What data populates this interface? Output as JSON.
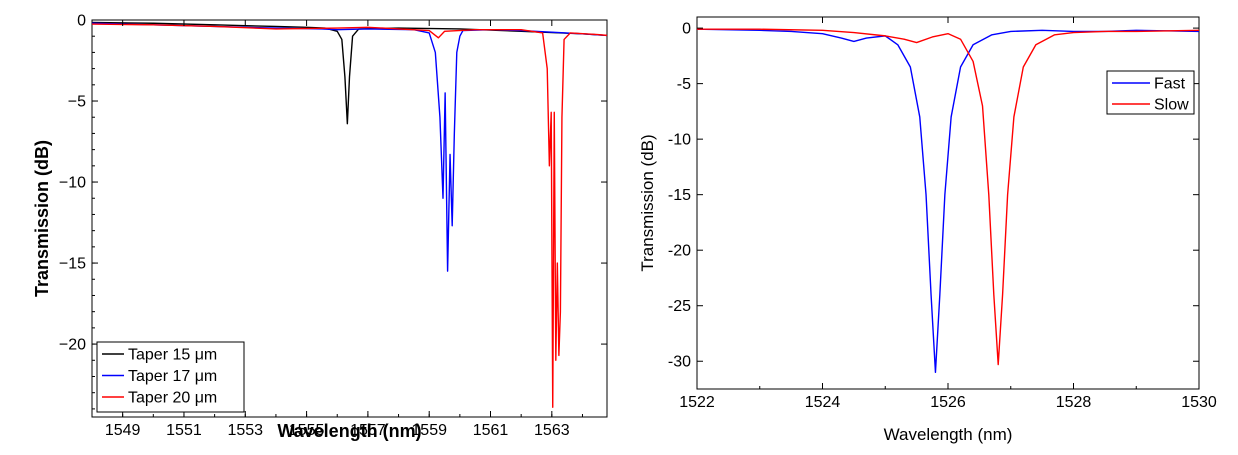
{
  "chart_data": [
    {
      "type": "line",
      "title": "",
      "xlabel": "Wavelength (nm)",
      "ylabel": "Transmission (dB)",
      "xlim": [
        1548,
        1564.8
      ],
      "ylim": [
        -24.5,
        0
      ],
      "x_ticks": [
        "1549",
        "1551",
        "1553",
        "1555",
        "1557",
        "1559",
        "1561",
        "1563"
      ],
      "y_ticks": [
        "0",
        "−5",
        "−10",
        "−15",
        "−20"
      ],
      "grid": false,
      "legend": "bottom-left",
      "series": [
        {
          "name": "Taper 15 μm",
          "color": "#000000",
          "points": [
            [
              1548,
              -0.15
            ],
            [
              1550,
              -0.2
            ],
            [
              1552,
              -0.3
            ],
            [
              1554,
              -0.4
            ],
            [
              1555,
              -0.45
            ],
            [
              1555.6,
              -0.5
            ],
            [
              1556,
              -0.7
            ],
            [
              1556.15,
              -1.2
            ],
            [
              1556.25,
              -3.5
            ],
            [
              1556.33,
              -6.4
            ],
            [
              1556.4,
              -3.5
            ],
            [
              1556.5,
              -1.0
            ],
            [
              1556.7,
              -0.55
            ],
            [
              1558,
              -0.5
            ],
            [
              1560,
              -0.55
            ],
            [
              1562,
              -0.7
            ],
            [
              1564,
              -0.85
            ],
            [
              1564.8,
              -0.95
            ]
          ]
        },
        {
          "name": "Taper 17 μm",
          "color": "#0000ff",
          "points": [
            [
              1548,
              -0.2
            ],
            [
              1550,
              -0.3
            ],
            [
              1552,
              -0.4
            ],
            [
              1554,
              -0.5
            ],
            [
              1555.5,
              -0.55
            ],
            [
              1556,
              -0.6
            ],
            [
              1557,
              -0.55
            ],
            [
              1558.5,
              -0.6
            ],
            [
              1559,
              -0.8
            ],
            [
              1559.2,
              -2.0
            ],
            [
              1559.35,
              -6.0
            ],
            [
              1559.45,
              -11.0
            ],
            [
              1559.52,
              -4.5
            ],
            [
              1559.6,
              -15.5
            ],
            [
              1559.68,
              -8.3
            ],
            [
              1559.75,
              -12.7
            ],
            [
              1559.82,
              -7.0
            ],
            [
              1559.9,
              -2.0
            ],
            [
              1560,
              -1.0
            ],
            [
              1560.1,
              -0.65
            ],
            [
              1561,
              -0.6
            ],
            [
              1562,
              -0.65
            ],
            [
              1563,
              -0.75
            ],
            [
              1564,
              -0.85
            ],
            [
              1564.8,
              -0.95
            ]
          ]
        },
        {
          "name": "Taper 20 μm",
          "color": "#ff0000",
          "points": [
            [
              1548,
              -0.25
            ],
            [
              1550,
              -0.3
            ],
            [
              1552,
              -0.4
            ],
            [
              1554,
              -0.55
            ],
            [
              1556,
              -0.5
            ],
            [
              1557,
              -0.45
            ],
            [
              1558,
              -0.55
            ],
            [
              1559,
              -0.65
            ],
            [
              1559.3,
              -1.1
            ],
            [
              1559.5,
              -0.7
            ],
            [
              1560.5,
              -0.6
            ],
            [
              1562,
              -0.6
            ],
            [
              1562.7,
              -0.8
            ],
            [
              1562.85,
              -3.0
            ],
            [
              1562.92,
              -9.0
            ],
            [
              1562.98,
              -5.7
            ],
            [
              1563.03,
              -23.9
            ],
            [
              1563.08,
              -5.7
            ],
            [
              1563.13,
              -21.0
            ],
            [
              1563.18,
              -15.0
            ],
            [
              1563.23,
              -20.7
            ],
            [
              1563.28,
              -18.0
            ],
            [
              1563.33,
              -6.0
            ],
            [
              1563.4,
              -1.2
            ],
            [
              1563.6,
              -0.8
            ],
            [
              1564.5,
              -0.9
            ],
            [
              1564.8,
              -0.95
            ]
          ]
        }
      ]
    },
    {
      "type": "line",
      "title": "",
      "xlabel": "Wavelength (nm)",
      "ylabel": "Transmission (dB)",
      "xlim": [
        1522,
        1530
      ],
      "ylim": [
        -32.5,
        1
      ],
      "x_ticks": [
        "1522",
        "1524",
        "1526",
        "1528",
        "1530"
      ],
      "y_ticks": [
        "0",
        "-5",
        "-10",
        "-15",
        "-20",
        "-25",
        "-30"
      ],
      "grid": false,
      "legend": "top-right",
      "series": [
        {
          "name": "Fast",
          "color": "#0000ff",
          "points": [
            [
              1522,
              -0.1
            ],
            [
              1523,
              -0.2
            ],
            [
              1523.5,
              -0.3
            ],
            [
              1524,
              -0.5
            ],
            [
              1524.3,
              -0.9
            ],
            [
              1524.5,
              -1.2
            ],
            [
              1524.7,
              -0.9
            ],
            [
              1525,
              -0.7
            ],
            [
              1525.2,
              -1.5
            ],
            [
              1525.4,
              -3.5
            ],
            [
              1525.55,
              -8.0
            ],
            [
              1525.65,
              -15.0
            ],
            [
              1525.73,
              -24.0
            ],
            [
              1525.8,
              -31.0
            ],
            [
              1525.87,
              -24.0
            ],
            [
              1525.95,
              -15.0
            ],
            [
              1526.05,
              -8.0
            ],
            [
              1526.2,
              -3.5
            ],
            [
              1526.4,
              -1.5
            ],
            [
              1526.7,
              -0.6
            ],
            [
              1527,
              -0.3
            ],
            [
              1527.5,
              -0.2
            ],
            [
              1528,
              -0.3
            ],
            [
              1528.5,
              -0.3
            ],
            [
              1529,
              -0.2
            ],
            [
              1530,
              -0.3
            ]
          ]
        },
        {
          "name": "Slow",
          "color": "#ff0000",
          "points": [
            [
              1522,
              -0.1
            ],
            [
              1523,
              -0.1
            ],
            [
              1524,
              -0.2
            ],
            [
              1524.5,
              -0.4
            ],
            [
              1525,
              -0.7
            ],
            [
              1525.3,
              -1.0
            ],
            [
              1525.5,
              -1.3
            ],
            [
              1525.75,
              -0.8
            ],
            [
              1526,
              -0.5
            ],
            [
              1526.2,
              -1.0
            ],
            [
              1526.4,
              -3.0
            ],
            [
              1526.55,
              -7.0
            ],
            [
              1526.65,
              -15.0
            ],
            [
              1526.73,
              -24.0
            ],
            [
              1526.8,
              -30.3
            ],
            [
              1526.87,
              -24.0
            ],
            [
              1526.95,
              -15.0
            ],
            [
              1527.05,
              -8.0
            ],
            [
              1527.2,
              -3.5
            ],
            [
              1527.4,
              -1.5
            ],
            [
              1527.7,
              -0.6
            ],
            [
              1528,
              -0.4
            ],
            [
              1528.5,
              -0.3
            ],
            [
              1529,
              -0.3
            ],
            [
              1530,
              -0.2
            ]
          ]
        }
      ]
    }
  ]
}
